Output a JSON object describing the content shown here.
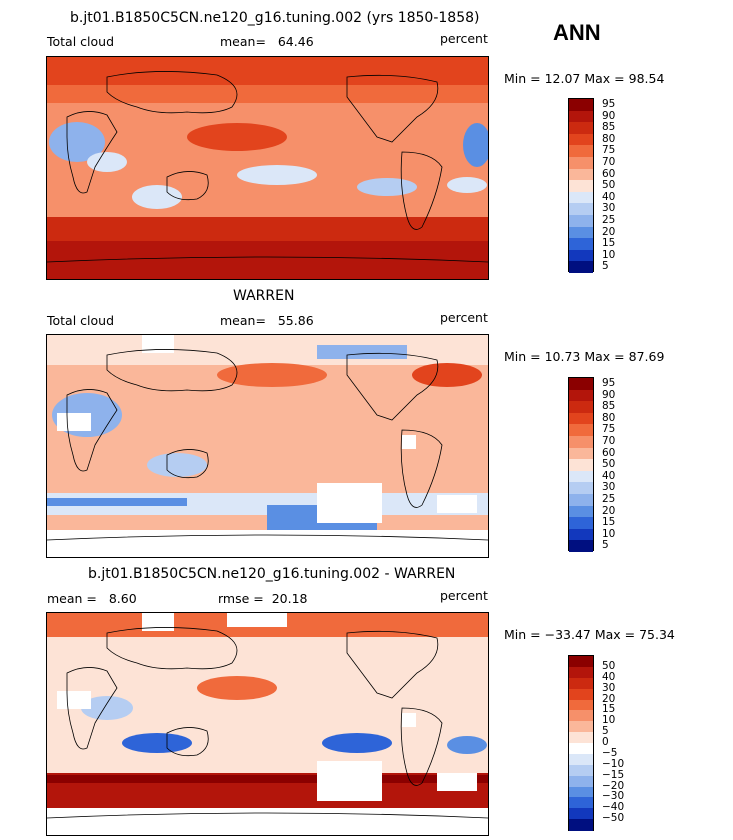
{
  "season": "ANN",
  "units": "percent",
  "panels": [
    {
      "id": "model",
      "title": "b.jt01.B1850C5CN.ne120_g16.tuning.002 (yrs 1850-1858)",
      "left_label": "Total cloud",
      "stat_label": "mean=",
      "stat_value": "64.46",
      "right_label": "percent",
      "range_text": "Min =  12.07 Max =  98.54"
    },
    {
      "id": "obs",
      "title": "WARREN",
      "left_label": "Total cloud",
      "stat_label": "mean=",
      "stat_value": "55.86",
      "right_label": "percent",
      "range_text": "Min =  10.73 Max =  87.69"
    },
    {
      "id": "diff",
      "title": "b.jt01.B1850C5CN.ne120_g16.tuning.002 - WARREN",
      "left_label": "mean =",
      "stat_value": "8.60",
      "rmse_label": "rmse =",
      "rmse_value": "20.18",
      "right_label": "percent",
      "range_text": "Min = −33.47 Max =  75.34"
    }
  ],
  "chart_data": [
    {
      "type": "heatmap",
      "title": "b.jt01.B1850C5CN.ne120_g16.tuning.002 (yrs 1850-1858)",
      "variable": "Total cloud",
      "units": "percent",
      "mean": 64.46,
      "min": 12.07,
      "max": 98.54,
      "levels": [
        "95",
        "90",
        "85",
        "80",
        "75",
        "70",
        "60",
        "50",
        "40",
        "30",
        "25",
        "20",
        "15",
        "10",
        "5"
      ],
      "colors": [
        "#8b0000",
        "#b3150b",
        "#cc2a10",
        "#e2441d",
        "#f06a3c",
        "#f6906a",
        "#fab79a",
        "#fde3d6",
        "#dbe7f8",
        "#b5cdf2",
        "#8eb2ec",
        "#5a8fe3",
        "#2e64d8",
        "#1238bd",
        "#000f80"
      ]
    },
    {
      "type": "heatmap",
      "title": "WARREN",
      "variable": "Total cloud",
      "units": "percent",
      "mean": 55.86,
      "min": 10.73,
      "max": 87.69,
      "levels": [
        "95",
        "90",
        "85",
        "80",
        "75",
        "70",
        "60",
        "50",
        "40",
        "30",
        "25",
        "20",
        "15",
        "10",
        "5"
      ],
      "colors": [
        "#8b0000",
        "#b3150b",
        "#cc2a10",
        "#e2441d",
        "#f06a3c",
        "#f6906a",
        "#fab79a",
        "#fde3d6",
        "#dbe7f8",
        "#b5cdf2",
        "#8eb2ec",
        "#5a8fe3",
        "#2e64d8",
        "#1238bd",
        "#000f80"
      ]
    },
    {
      "type": "heatmap",
      "title": "b.jt01.B1850C5CN.ne120_g16.tuning.002 - WARREN",
      "units": "percent",
      "mean": 8.6,
      "rmse": 20.18,
      "min": -33.47,
      "max": 75.34,
      "levels": [
        "50",
        "40",
        "30",
        "20",
        "15",
        "10",
        "5",
        "0",
        "−5",
        "−10",
        "−15",
        "−20",
        "−30",
        "−40",
        "−50"
      ],
      "colors": [
        "#8b0000",
        "#b3150b",
        "#cc2a10",
        "#e2441d",
        "#f06a3c",
        "#f6906a",
        "#fab79a",
        "#fde3d6",
        "#ffffff",
        "#dbe7f8",
        "#b5cdf2",
        "#8eb2ec",
        "#5a8fe3",
        "#2e64d8",
        "#1238bd",
        "#000f80"
      ]
    }
  ]
}
